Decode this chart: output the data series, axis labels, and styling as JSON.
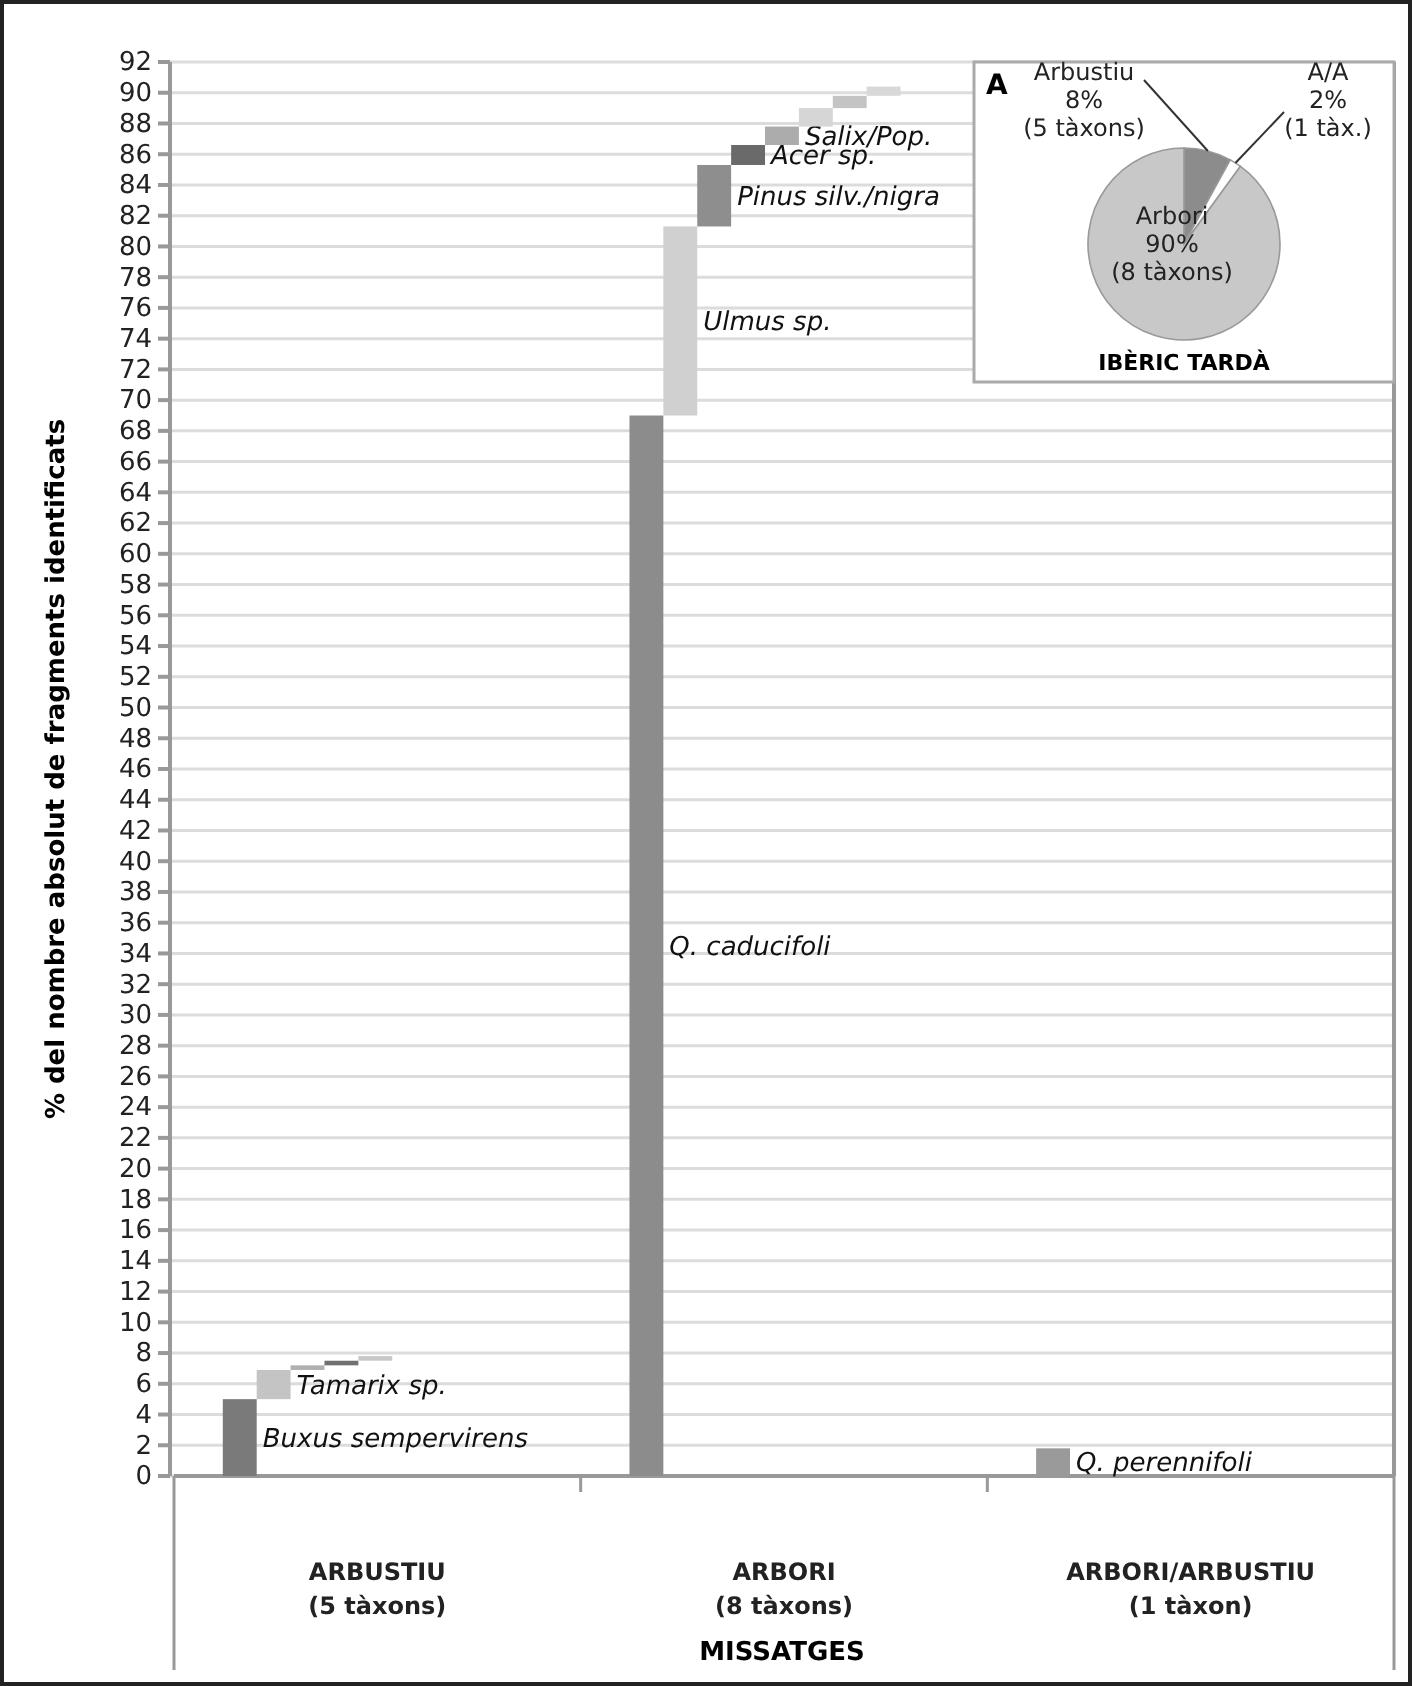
{
  "chart_data": [
    {
      "type": "bar",
      "xlabel": "MISSATGES",
      "ylabel": "% del nombre absolut de fragments identificats",
      "categories": [
        "ARBUSTIU\n(5 tàxons)",
        "ARBORI\n(8 tàxons)",
        "ARBORI/ARBUSTIU\n(1 tàxon)"
      ],
      "series": [
        {
          "name": "Buxus sempervirens",
          "color": "#7a7a7a",
          "values": [
            5,
            null,
            null
          ],
          "base": [
            0,
            null,
            null
          ]
        },
        {
          "name": "Tamarix sp.",
          "color": "#c4c4c4",
          "values": [
            1.9,
            null,
            null
          ],
          "base": [
            5,
            null,
            null
          ]
        },
        {
          "color": "#b0b0b0",
          "values": [
            0.3,
            null,
            null
          ],
          "base": [
            6.9,
            null,
            null
          ]
        },
        {
          "color": "#707070",
          "values": [
            0.3,
            null,
            null
          ],
          "base": [
            7.2,
            null,
            null
          ]
        },
        {
          "color": "#c8c8c8",
          "values": [
            0.3,
            null,
            null
          ],
          "base": [
            7.5,
            null,
            null
          ]
        },
        {
          "name": "Q. caducifoli",
          "color": "#8c8c8c",
          "values": [
            null,
            69,
            null
          ],
          "base": [
            null,
            0,
            null
          ]
        },
        {
          "name": "Ulmus sp.",
          "color": "#d0d0d0",
          "values": [
            null,
            12.3,
            null
          ],
          "base": [
            null,
            69,
            null
          ]
        },
        {
          "name": "Pinus silv./nigra",
          "color": "#8e8e8e",
          "values": [
            null,
            4,
            null
          ],
          "base": [
            null,
            81.3,
            null
          ]
        },
        {
          "name": "Acer sp.",
          "color": "#6a6a6a",
          "values": [
            null,
            1.3,
            null
          ],
          "base": [
            null,
            85.3,
            null
          ]
        },
        {
          "name": "Salix/Pop.",
          "color": "#acacac",
          "values": [
            null,
            1.2,
            null
          ],
          "base": [
            null,
            86.6,
            null
          ]
        },
        {
          "color": "#d6d6d6",
          "values": [
            null,
            1.2,
            null
          ],
          "base": [
            null,
            87.8,
            null
          ]
        },
        {
          "color": "#c4c4c4",
          "values": [
            null,
            0.8,
            null
          ],
          "base": [
            null,
            89,
            null
          ]
        },
        {
          "color": "#d8d8d8",
          "values": [
            null,
            0.6,
            null
          ],
          "base": [
            null,
            89.8,
            null
          ]
        },
        {
          "name": "Q. perennifoli",
          "color": "#9a9a9a",
          "values": [
            null,
            null,
            1.8
          ],
          "base": [
            null,
            null,
            0
          ]
        }
      ],
      "ylim": [
        0,
        92
      ],
      "yticks": [
        0,
        2,
        4,
        6,
        8,
        10,
        12,
        14,
        16,
        18,
        20,
        22,
        24,
        26,
        28,
        30,
        32,
        34,
        36,
        38,
        40,
        42,
        44,
        46,
        48,
        50,
        52,
        54,
        56,
        58,
        60,
        62,
        64,
        66,
        68,
        70,
        72,
        74,
        76,
        78,
        80,
        82,
        84,
        86,
        88,
        90,
        92
      ],
      "grid": "y"
    },
    {
      "type": "pie",
      "title": "IBÈRIC TARDÀ",
      "annotations": [
        "A"
      ],
      "categories": [
        "Arbustiu",
        "A/A",
        "Arbori"
      ],
      "values": [
        8,
        2,
        90
      ],
      "value_labels": [
        "8%\n(5 tàxons)",
        "2%\n(1 tàx.)",
        "90%\n(8 tàxons)"
      ],
      "colors": [
        "#8c8c8c",
        "#ffffff",
        "#c8c8c8"
      ]
    }
  ]
}
